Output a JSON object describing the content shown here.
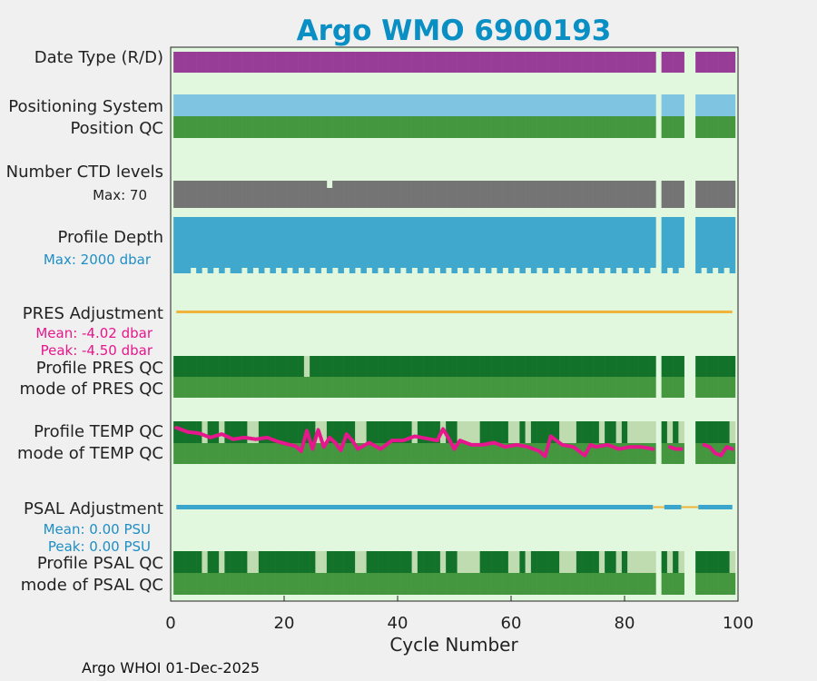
{
  "title": "Argo WMO 6900193",
  "footer": "Argo WHOI 01-Dec-2025",
  "colors": {
    "title": "#0a8fc4",
    "panel_bg": "#e1f8de",
    "figure_bg": "#f0f0f0",
    "date_type": "#983d97",
    "positioning": "#7fc4e1",
    "qc_good": "#44963f",
    "qc_dark": "#12722a",
    "qc_light": "#bfdcb0",
    "ctd": "#747474",
    "profile_depth": "#40a8cd",
    "pres_adj": "#f0b43c",
    "temp_line": "#e6178c",
    "psal_adj": "#3aa6cd",
    "psal_gap": "#f0b43c",
    "depth_label": "#1f8ec4",
    "pres_label": "#e6178c",
    "psal_label": "#1f8ec4"
  },
  "rows": {
    "date_type": "Date Type (R/D)",
    "positioning": "Positioning System",
    "position_qc": "Position QC",
    "ctd_levels": "Number CTD levels",
    "ctd_max": "Max: 70",
    "profile_depth": "Profile Depth",
    "depth_max": "Max: 2000 dbar",
    "pres_adj": "PRES Adjustment",
    "pres_mean": "Mean: -4.02 dbar",
    "pres_peak": "Peak: -4.50 dbar",
    "profile_pres_qc": "Profile PRES QC",
    "mode_pres_qc": "mode of PRES QC",
    "profile_temp_qc": "Profile TEMP QC",
    "mode_temp_qc": "mode of TEMP QC",
    "psal_adj": "PSAL Adjustment",
    "psal_mean": "Mean: 0.00 PSU",
    "psal_peak": "Peak: 0.00 PSU",
    "profile_psal_qc": "Profile PSAL QC",
    "mode_psal_qc": "mode of PSAL QC"
  },
  "chart_data": {
    "type": "bar",
    "title": "Argo WMO 6900193",
    "xlabel": "Cycle Number",
    "ylabel": "",
    "xlim": [
      0,
      100
    ],
    "xticks": [
      0,
      20,
      40,
      60,
      80,
      100
    ],
    "grid": false,
    "cycles_range": [
      1,
      99
    ],
    "missing_cycles": [
      86,
      91,
      92
    ],
    "ctd_levels_max": 70,
    "ctd_low_cycles": [
      28
    ],
    "profile_depth_max_dbar": 2000,
    "shallow_profile_cycles": [
      4,
      6,
      8,
      10,
      13,
      15,
      17,
      19,
      21,
      23,
      25,
      27,
      29,
      31,
      33,
      35,
      37,
      39,
      41,
      43,
      45,
      47,
      49,
      51,
      53,
      55,
      57,
      59,
      61,
      63,
      65,
      67,
      69,
      71,
      73,
      75,
      77,
      79,
      81,
      83,
      85,
      88,
      90,
      94,
      96,
      98
    ],
    "pres_adjustment": {
      "mean_dbar": -4.02,
      "peak_dbar": -4.5
    },
    "profile_pres_qc_light_cycles": [
      24
    ],
    "profile_temp_qc_light_cycles": [
      6,
      9,
      14,
      15,
      26,
      27,
      33,
      34,
      43,
      48,
      51,
      52,
      53,
      54,
      60,
      61,
      63,
      69,
      70,
      71,
      76,
      79,
      81,
      82,
      83,
      84,
      85,
      88,
      90,
      99
    ],
    "profile_psal_qc_light_cycles": [
      6,
      9,
      14,
      15,
      26,
      27,
      33,
      34,
      43,
      48,
      51,
      52,
      53,
      54,
      60,
      61,
      63,
      69,
      70,
      71,
      76,
      79,
      81,
      82,
      83,
      84,
      85,
      88,
      90,
      99
    ],
    "temp_qc_series": {
      "name": "TEMP QC fraction",
      "x": [
        1,
        3,
        5,
        7,
        9,
        11,
        13,
        15,
        17,
        19,
        21,
        22,
        23,
        24,
        25,
        26,
        27,
        28,
        29,
        30,
        31,
        32,
        33,
        35,
        37,
        39,
        41,
        43,
        45,
        47,
        48,
        49,
        50,
        51,
        53,
        55,
        57,
        59,
        61,
        63,
        65,
        66,
        67,
        69,
        71,
        73,
        74,
        75,
        77,
        79,
        81,
        83,
        85,
        88,
        89,
        90,
        94,
        95,
        96,
        97,
        98,
        99
      ],
      "values": [
        0.85,
        0.75,
        0.72,
        0.62,
        0.7,
        0.58,
        0.62,
        0.58,
        0.62,
        0.52,
        0.45,
        0.42,
        0.3,
        0.78,
        0.35,
        0.8,
        0.4,
        0.62,
        0.5,
        0.32,
        0.7,
        0.55,
        0.35,
        0.5,
        0.35,
        0.55,
        0.55,
        0.65,
        0.6,
        0.55,
        0.82,
        0.6,
        0.35,
        0.55,
        0.45,
        0.45,
        0.5,
        0.4,
        0.45,
        0.4,
        0.3,
        0.18,
        0.65,
        0.45,
        0.4,
        0.2,
        0.45,
        0.4,
        0.45,
        0.35,
        0.4,
        0.4,
        0.35,
        0.4,
        0.35,
        0.35,
        0.45,
        0.4,
        0.25,
        0.2,
        0.4,
        0.35
      ]
    },
    "psal_adjustment": {
      "mean_psu": 0.0,
      "peak_psu": 0.0
    }
  }
}
